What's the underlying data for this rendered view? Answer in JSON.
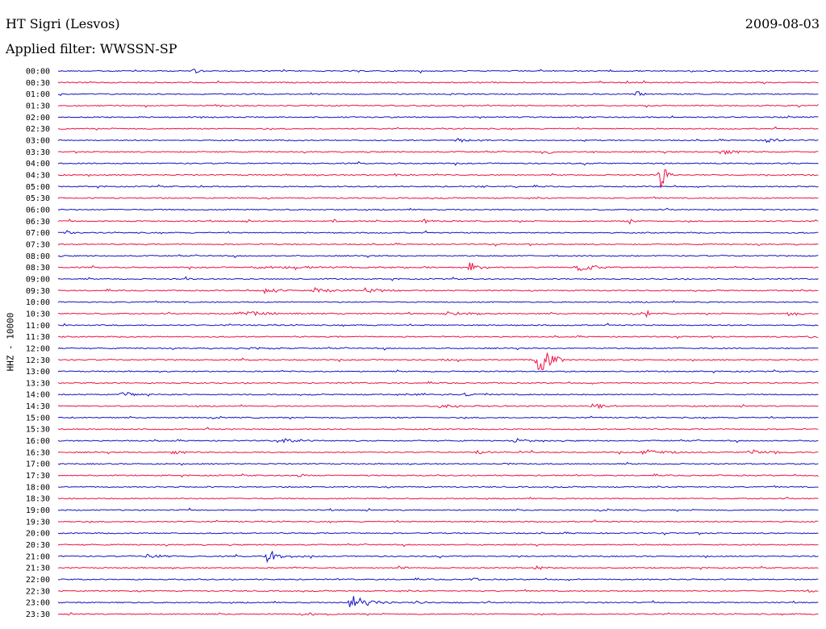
{
  "header": {
    "station": "HT Sigri (Lesvos)",
    "date": "2009-08-03",
    "filter": "Applied filter: WWSSN-SP"
  },
  "chart_data": {
    "type": "line",
    "ylabel": "HHZ - 10000",
    "colors": {
      "odd": "#1212c8",
      "even": "#ee1144"
    },
    "tick_labels": [
      "00:00",
      "00:30",
      "01:00",
      "01:30",
      "02:00",
      "02:30",
      "03:00",
      "03:30",
      "04:00",
      "04:30",
      "05:00",
      "05:30",
      "06:00",
      "06:30",
      "07:00",
      "07:30",
      "08:00",
      "08:30",
      "09:00",
      "09:30",
      "10:00",
      "10:30",
      "11:00",
      "11:30",
      "12:00",
      "12:30",
      "13:00",
      "13:30",
      "14:00",
      "14:30",
      "15:00",
      "15:30",
      "16:00",
      "16:30",
      "17:00",
      "17:30",
      "18:00",
      "18:30",
      "19:00",
      "19:30",
      "20:00",
      "20:30",
      "21:00",
      "21:30",
      "22:00",
      "22:30",
      "23:00",
      "23:30"
    ],
    "trace_window_minutes": 30,
    "events": [
      {
        "trace": "00:00",
        "minute": 5.3,
        "amplitude": 0.25,
        "duration": 0.7
      },
      {
        "trace": "00:30",
        "minute": 17.1,
        "amplitude": 0.12,
        "duration": 0.4
      },
      {
        "trace": "01:00",
        "minute": 22.8,
        "amplitude": 0.45,
        "duration": 0.3
      },
      {
        "trace": "03:00",
        "minute": 15.6,
        "amplitude": 0.2,
        "duration": 1.2
      },
      {
        "trace": "03:00",
        "minute": 27.8,
        "amplitude": 0.3,
        "duration": 0.8
      },
      {
        "trace": "03:30",
        "minute": 19.3,
        "amplitude": 0.22,
        "duration": 0.4
      },
      {
        "trace": "03:30",
        "minute": 26.1,
        "amplitude": 0.25,
        "duration": 1.4
      },
      {
        "trace": "04:30",
        "minute": 13.3,
        "amplitude": 0.45,
        "duration": 0.1
      },
      {
        "trace": "04:30",
        "minute": 23.7,
        "amplitude": 1.6,
        "duration": 0.4
      },
      {
        "trace": "05:00",
        "minute": 5.6,
        "amplitude": 0.15,
        "duration": 0.6
      },
      {
        "trace": "05:00",
        "minute": 16.4,
        "amplitude": 0.12,
        "duration": 1.2
      },
      {
        "trace": "06:30",
        "minute": 10.6,
        "amplitude": 0.2,
        "duration": 1.0
      },
      {
        "trace": "06:30",
        "minute": 14.4,
        "amplitude": 0.2,
        "duration": 0.8
      },
      {
        "trace": "06:30",
        "minute": 22.5,
        "amplitude": 0.35,
        "duration": 0.2
      },
      {
        "trace": "07:00",
        "minute": 0.3,
        "amplitude": 0.3,
        "duration": 0.3
      },
      {
        "trace": "08:30",
        "minute": 7.6,
        "amplitude": 0.12,
        "duration": 8.0
      },
      {
        "trace": "08:30",
        "minute": 16.2,
        "amplitude": 0.55,
        "duration": 0.6
      },
      {
        "trace": "08:30",
        "minute": 20.4,
        "amplitude": 0.45,
        "duration": 1.2
      },
      {
        "trace": "09:00",
        "minute": 5.0,
        "amplitude": 0.2,
        "duration": 0.6
      },
      {
        "trace": "09:30",
        "minute": 8.1,
        "amplitude": 0.3,
        "duration": 1.0
      },
      {
        "trace": "09:30",
        "minute": 10.0,
        "amplitude": 0.35,
        "duration": 1.1
      },
      {
        "trace": "09:30",
        "minute": 12.1,
        "amplitude": 0.28,
        "duration": 1.2
      },
      {
        "trace": "10:30",
        "minute": 7.0,
        "amplitude": 0.22,
        "duration": 3.2
      },
      {
        "trace": "10:30",
        "minute": 15.4,
        "amplitude": 0.18,
        "duration": 2.2
      },
      {
        "trace": "10:30",
        "minute": 23.2,
        "amplitude": 0.45,
        "duration": 0.1
      },
      {
        "trace": "10:30",
        "minute": 28.7,
        "amplitude": 0.2,
        "duration": 1.0
      },
      {
        "trace": "11:30",
        "minute": 29.5,
        "amplitude": 0.2,
        "duration": 1.2
      },
      {
        "trace": "12:00",
        "minute": 7.5,
        "amplitude": 0.15,
        "duration": 1.2
      },
      {
        "trace": "12:30",
        "minute": 15.0,
        "amplitude": 0.12,
        "duration": 1.2
      },
      {
        "trace": "12:30",
        "minute": 18.8,
        "amplitude": 2.0,
        "duration": 0.8
      },
      {
        "trace": "14:00",
        "minute": 2.5,
        "amplitude": 0.25,
        "duration": 1.2
      },
      {
        "trace": "14:00",
        "minute": 14.2,
        "amplitude": 0.18,
        "duration": 1.2
      },
      {
        "trace": "14:00",
        "minute": 16.0,
        "amplitude": 0.2,
        "duration": 0.6
      },
      {
        "trace": "14:30",
        "minute": 15.0,
        "amplitude": 0.18,
        "duration": 2.4
      },
      {
        "trace": "14:30",
        "minute": 21.0,
        "amplitude": 0.18,
        "duration": 2.4
      },
      {
        "trace": "16:00",
        "minute": 8.9,
        "amplitude": 0.25,
        "duration": 1.0
      },
      {
        "trace": "16:00",
        "minute": 18.0,
        "amplitude": 0.22,
        "duration": 1.0
      },
      {
        "trace": "16:30",
        "minute": 4.5,
        "amplitude": 0.15,
        "duration": 1.6
      },
      {
        "trace": "16:30",
        "minute": 16.5,
        "amplitude": 0.18,
        "duration": 1.8
      },
      {
        "trace": "16:30",
        "minute": 23.0,
        "amplitude": 0.25,
        "duration": 1.8
      },
      {
        "trace": "16:30",
        "minute": 27.2,
        "amplitude": 0.25,
        "duration": 1.6
      },
      {
        "trace": "17:00",
        "minute": 17.5,
        "amplitude": 0.12,
        "duration": 1.0
      },
      {
        "trace": "17:30",
        "minute": 9.5,
        "amplitude": 0.45,
        "duration": 0.2
      },
      {
        "trace": "21:00",
        "minute": 3.5,
        "amplitude": 0.25,
        "duration": 1.2
      },
      {
        "trace": "21:00",
        "minute": 8.2,
        "amplitude": 0.6,
        "duration": 1.0
      },
      {
        "trace": "21:30",
        "minute": 13.4,
        "amplitude": 0.2,
        "duration": 0.6
      },
      {
        "trace": "21:30",
        "minute": 18.8,
        "amplitude": 0.3,
        "duration": 0.6
      },
      {
        "trace": "22:00",
        "minute": 16.2,
        "amplitude": 0.25,
        "duration": 0.5
      },
      {
        "trace": "22:30",
        "minute": 29.5,
        "amplitude": 0.2,
        "duration": 0.6
      },
      {
        "trace": "23:00",
        "minute": 11.5,
        "amplitude": 0.8,
        "duration": 1.2
      },
      {
        "trace": "23:00",
        "minute": 14.0,
        "amplitude": 0.2,
        "duration": 0.8
      },
      {
        "trace": "23:30",
        "minute": 10.0,
        "amplitude": 0.15,
        "duration": 0.5
      }
    ]
  }
}
